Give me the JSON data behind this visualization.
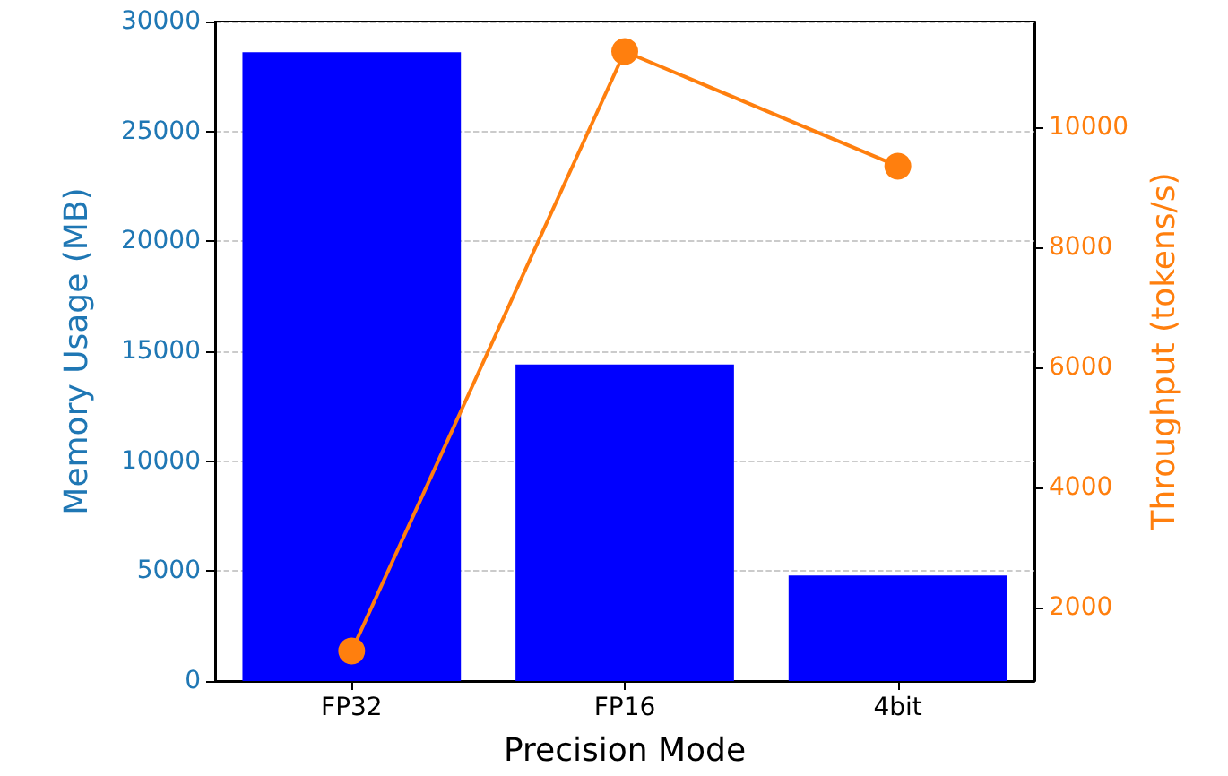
{
  "chart_data": {
    "type": "bar",
    "categories": [
      "FP32",
      "FP16",
      "4bit"
    ],
    "series": [
      {
        "color": "#0000ff",
        "values": [
          28600,
          14400,
          4800
        ]
      },
      {
        "type": "line",
        "axis": "y2",
        "color": "#ff7f0e",
        "values": [
          1270,
          11260,
          9350
        ],
        "marker": "circle",
        "line_style": "solid"
      }
    ],
    "xlabel": "Precision Mode",
    "ylabel": "Memory Usage (MB)",
    "y2label": "Throughput (tokens/s)",
    "ylim": [
      0,
      30000
    ],
    "yticks": [
      0,
      5000,
      10000,
      15000,
      20000,
      25000,
      30000
    ],
    "y2lim": [
      770,
      11760
    ],
    "y2ticks": [
      2000,
      4000,
      6000,
      8000,
      10000
    ],
    "grid": "y"
  }
}
